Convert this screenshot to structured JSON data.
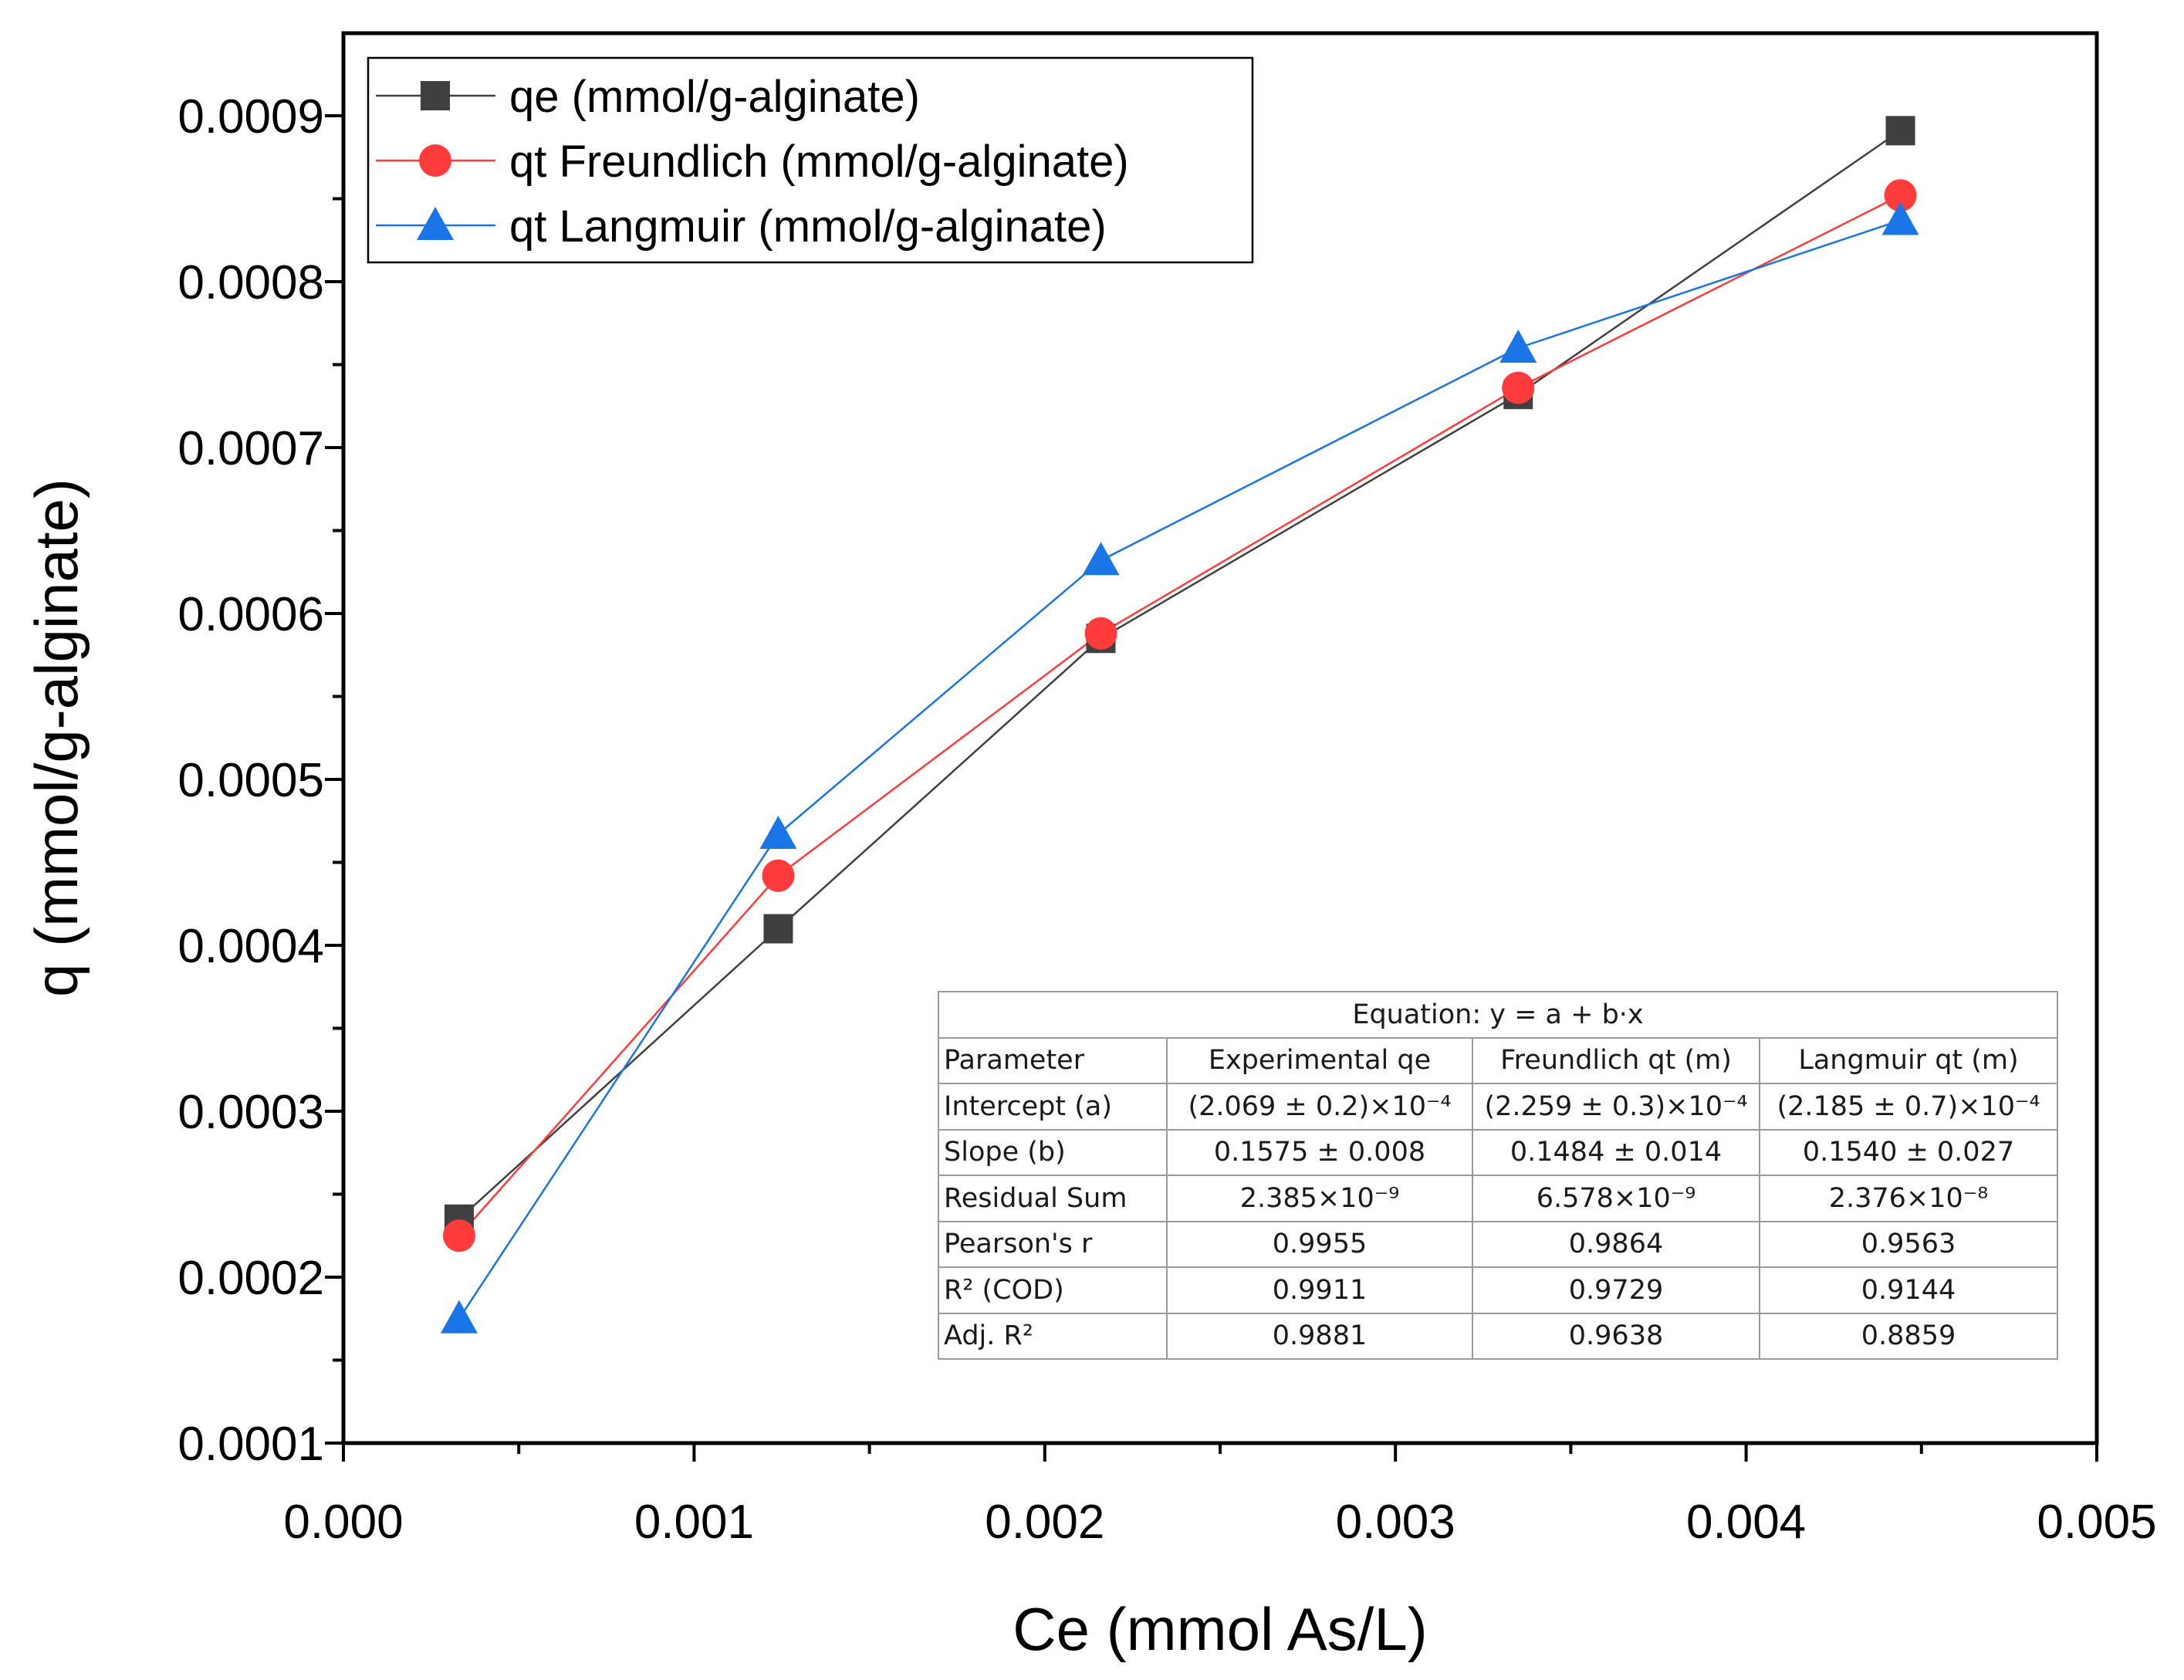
{
  "chart_data": {
    "type": "line",
    "title": "",
    "xlabel": "Ce (mmol As/L)",
    "ylabel": "q (mmol/g-alginate)",
    "xlim": [
      0,
      0.005
    ],
    "ylim": [
      0.0001,
      0.00095
    ],
    "xticks": [
      0.0,
      0.001,
      0.002,
      0.003,
      0.004,
      0.005
    ],
    "xtick_labels": [
      "0.000",
      "0.001",
      "0.002",
      "0.003",
      "0.004",
      "0.005"
    ],
    "yticks": [
      0.0001,
      0.0002,
      0.0003,
      0.0004,
      0.0005,
      0.0006,
      0.0007,
      0.0008,
      0.0009
    ],
    "ytick_labels": [
      "0.0001",
      "0.0002",
      "0.0003",
      "0.0004",
      "0.0005",
      "0.0006",
      "0.0007",
      "0.0008",
      "0.0009"
    ],
    "grid": false,
    "legend_position": "top-left",
    "x": [
      0.00033,
      0.00124,
      0.00216,
      0.00335,
      0.00444
    ],
    "series": [
      {
        "name": "qe (mmol/g-alginate)",
        "marker": "square",
        "color": "#404040",
        "values": [
          0.000235,
          0.00041,
          0.000585,
          0.000732,
          0.000891
        ]
      },
      {
        "name": "qt Freundlich (mmol/g-alginate)",
        "marker": "circle",
        "color": "#ff3b3b",
        "values": [
          0.000225,
          0.000442,
          0.000588,
          0.000736,
          0.000852
        ]
      },
      {
        "name": "qt Langmuir (mmol/g-alginate)",
        "marker": "triangle",
        "color": "#1a75e6",
        "values": [
          0.000175,
          0.000467,
          0.000632,
          0.00076,
          0.000837
        ]
      }
    ],
    "fit_table": {
      "equation": "Equation: y = a + b·x",
      "headers": [
        "Parameter",
        "Experimental qe",
        "Freundlich qt (m)",
        "Langmuir qt (m)"
      ],
      "rows": [
        [
          "Intercept (a)",
          "(2.069 ± 0.2)×10⁻⁴",
          "(2.259 ± 0.3)×10⁻⁴",
          "(2.185 ± 0.7)×10⁻⁴"
        ],
        [
          "Slope (b)",
          "0.1575 ± 0.008",
          "0.1484 ± 0.014",
          "0.1540 ± 0.027"
        ],
        [
          "Residual Sum",
          "2.385×10⁻⁹",
          "6.578×10⁻⁹",
          "2.376×10⁻⁸"
        ],
        [
          "Pearson's r",
          "0.9955",
          "0.9864",
          "0.9563"
        ],
        [
          "R² (COD)",
          "0.9911",
          "0.9729",
          "0.9144"
        ],
        [
          "Adj. R²",
          "0.9881",
          "0.9638",
          "0.8859"
        ]
      ]
    }
  }
}
